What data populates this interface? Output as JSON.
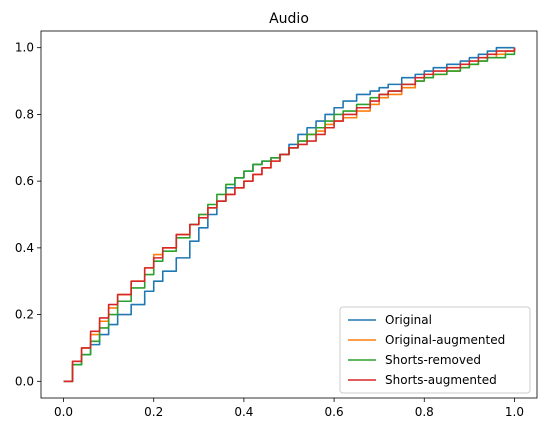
{
  "chart_data": {
    "type": "line",
    "title": "Audio",
    "xlabel": "",
    "ylabel": "",
    "xlim": [
      -0.05,
      1.05
    ],
    "ylim": [
      -0.05,
      1.05
    ],
    "xticks": [
      0.0,
      0.2,
      0.4,
      0.6,
      0.8,
      1.0
    ],
    "yticks": [
      0.0,
      0.2,
      0.4,
      0.6,
      0.8,
      1.0
    ],
    "xtick_labels": [
      "0.0",
      "0.2",
      "0.4",
      "0.6",
      "0.8",
      "1.0"
    ],
    "ytick_labels": [
      "0.0",
      "0.2",
      "0.4",
      "0.6",
      "0.8",
      "1.0"
    ],
    "grid": false,
    "legend_position": "lower-right",
    "series": [
      {
        "name": "Original",
        "color": "#1f77b4",
        "x": [
          0.0,
          0.02,
          0.04,
          0.06,
          0.08,
          0.1,
          0.12,
          0.15,
          0.18,
          0.2,
          0.22,
          0.25,
          0.28,
          0.3,
          0.32,
          0.34,
          0.36,
          0.38,
          0.4,
          0.42,
          0.44,
          0.46,
          0.48,
          0.5,
          0.52,
          0.54,
          0.56,
          0.58,
          0.6,
          0.62,
          0.65,
          0.68,
          0.7,
          0.72,
          0.75,
          0.78,
          0.8,
          0.82,
          0.85,
          0.88,
          0.9,
          0.92,
          0.94,
          0.96,
          0.98,
          1.0
        ],
        "y": [
          0.0,
          0.05,
          0.08,
          0.11,
          0.14,
          0.17,
          0.2,
          0.23,
          0.27,
          0.3,
          0.33,
          0.37,
          0.42,
          0.46,
          0.5,
          0.54,
          0.58,
          0.61,
          0.63,
          0.65,
          0.66,
          0.67,
          0.68,
          0.71,
          0.74,
          0.76,
          0.78,
          0.8,
          0.82,
          0.84,
          0.86,
          0.87,
          0.88,
          0.89,
          0.91,
          0.92,
          0.93,
          0.94,
          0.95,
          0.96,
          0.97,
          0.98,
          0.99,
          1.0,
          1.0,
          1.0
        ]
      },
      {
        "name": "Original-augmented",
        "color": "#ff7f0e",
        "x": [
          0.0,
          0.02,
          0.04,
          0.06,
          0.08,
          0.1,
          0.12,
          0.15,
          0.18,
          0.2,
          0.22,
          0.25,
          0.28,
          0.3,
          0.32,
          0.34,
          0.36,
          0.38,
          0.4,
          0.42,
          0.44,
          0.46,
          0.48,
          0.5,
          0.52,
          0.54,
          0.56,
          0.58,
          0.6,
          0.62,
          0.65,
          0.68,
          0.7,
          0.72,
          0.75,
          0.78,
          0.8,
          0.82,
          0.85,
          0.88,
          0.9,
          0.92,
          0.94,
          0.96,
          0.98,
          1.0
        ],
        "y": [
          0.0,
          0.06,
          0.1,
          0.14,
          0.18,
          0.22,
          0.26,
          0.3,
          0.34,
          0.38,
          0.4,
          0.44,
          0.47,
          0.5,
          0.52,
          0.54,
          0.56,
          0.58,
          0.6,
          0.62,
          0.64,
          0.66,
          0.68,
          0.7,
          0.72,
          0.74,
          0.75,
          0.77,
          0.78,
          0.79,
          0.81,
          0.83,
          0.85,
          0.86,
          0.88,
          0.9,
          0.91,
          0.92,
          0.93,
          0.94,
          0.95,
          0.96,
          0.97,
          0.98,
          0.99,
          1.0
        ]
      },
      {
        "name": "Shorts-removed",
        "color": "#2ca02c",
        "x": [
          0.0,
          0.02,
          0.04,
          0.06,
          0.08,
          0.1,
          0.12,
          0.15,
          0.18,
          0.2,
          0.22,
          0.25,
          0.28,
          0.3,
          0.32,
          0.34,
          0.36,
          0.38,
          0.4,
          0.42,
          0.44,
          0.46,
          0.48,
          0.5,
          0.52,
          0.54,
          0.56,
          0.58,
          0.6,
          0.62,
          0.65,
          0.68,
          0.7,
          0.72,
          0.75,
          0.78,
          0.8,
          0.82,
          0.85,
          0.88,
          0.9,
          0.92,
          0.94,
          0.96,
          0.98,
          1.0
        ],
        "y": [
          0.0,
          0.05,
          0.08,
          0.12,
          0.16,
          0.2,
          0.24,
          0.28,
          0.32,
          0.36,
          0.39,
          0.43,
          0.47,
          0.5,
          0.53,
          0.56,
          0.59,
          0.61,
          0.63,
          0.65,
          0.66,
          0.67,
          0.68,
          0.7,
          0.72,
          0.74,
          0.76,
          0.78,
          0.8,
          0.81,
          0.83,
          0.85,
          0.86,
          0.87,
          0.89,
          0.9,
          0.91,
          0.92,
          0.93,
          0.94,
          0.95,
          0.96,
          0.97,
          0.97,
          0.98,
          1.0
        ]
      },
      {
        "name": "Shorts-augmented",
        "color": "#d62728",
        "x": [
          0.0,
          0.02,
          0.04,
          0.06,
          0.08,
          0.1,
          0.12,
          0.15,
          0.18,
          0.2,
          0.22,
          0.25,
          0.28,
          0.3,
          0.32,
          0.34,
          0.36,
          0.38,
          0.4,
          0.42,
          0.44,
          0.46,
          0.48,
          0.5,
          0.52,
          0.54,
          0.56,
          0.58,
          0.6,
          0.62,
          0.65,
          0.68,
          0.7,
          0.72,
          0.75,
          0.78,
          0.8,
          0.82,
          0.85,
          0.88,
          0.9,
          0.92,
          0.94,
          0.96,
          0.98,
          1.0
        ],
        "y": [
          0.0,
          0.06,
          0.1,
          0.15,
          0.19,
          0.23,
          0.26,
          0.3,
          0.34,
          0.37,
          0.4,
          0.44,
          0.47,
          0.49,
          0.52,
          0.54,
          0.56,
          0.58,
          0.6,
          0.62,
          0.64,
          0.66,
          0.68,
          0.7,
          0.71,
          0.72,
          0.74,
          0.76,
          0.78,
          0.8,
          0.82,
          0.84,
          0.86,
          0.87,
          0.89,
          0.91,
          0.92,
          0.93,
          0.94,
          0.95,
          0.96,
          0.97,
          0.98,
          0.99,
          0.99,
          1.0
        ]
      }
    ]
  }
}
